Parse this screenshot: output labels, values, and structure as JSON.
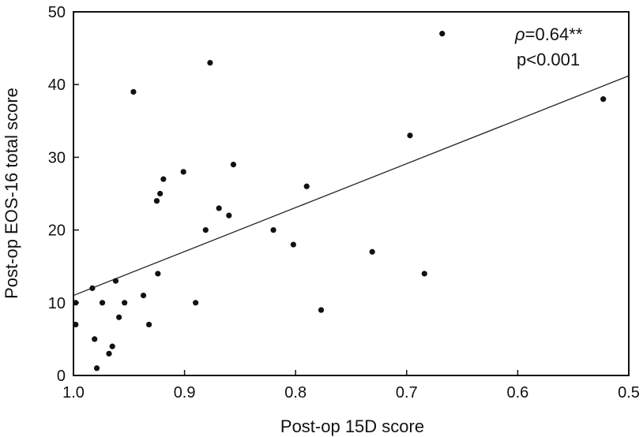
{
  "chart_data": {
    "type": "scatter",
    "title": "",
    "xlabel": "Post-op 15D score",
    "ylabel": "Post-op EOS-16 total score",
    "xlim": [
      1.0,
      0.5
    ],
    "ylim": [
      0,
      50
    ],
    "x_reversed": true,
    "grid": false,
    "legend": "none",
    "x_ticks": [
      1.0,
      0.9,
      0.8,
      0.7,
      0.6,
      0.5
    ],
    "x_tick_labels": [
      "1.0",
      "0.9",
      "0.8",
      "0.7",
      "0.6",
      "0.5"
    ],
    "y_ticks": [
      0,
      10,
      20,
      30,
      40,
      50
    ],
    "y_tick_labels": [
      "0",
      "10",
      "20",
      "30",
      "40",
      "50"
    ],
    "points": [
      {
        "x": 0.998,
        "y": 10
      },
      {
        "x": 0.998,
        "y": 7
      },
      {
        "x": 0.983,
        "y": 12
      },
      {
        "x": 0.981,
        "y": 5
      },
      {
        "x": 0.979,
        "y": 1
      },
      {
        "x": 0.974,
        "y": 10
      },
      {
        "x": 0.968,
        "y": 3
      },
      {
        "x": 0.965,
        "y": 4
      },
      {
        "x": 0.962,
        "y": 13
      },
      {
        "x": 0.959,
        "y": 8
      },
      {
        "x": 0.954,
        "y": 10
      },
      {
        "x": 0.946,
        "y": 39
      },
      {
        "x": 0.937,
        "y": 11
      },
      {
        "x": 0.932,
        "y": 7
      },
      {
        "x": 0.925,
        "y": 24
      },
      {
        "x": 0.924,
        "y": 14
      },
      {
        "x": 0.922,
        "y": 25
      },
      {
        "x": 0.919,
        "y": 27
      },
      {
        "x": 0.901,
        "y": 28
      },
      {
        "x": 0.89,
        "y": 10
      },
      {
        "x": 0.881,
        "y": 20
      },
      {
        "x": 0.877,
        "y": 43
      },
      {
        "x": 0.869,
        "y": 23
      },
      {
        "x": 0.86,
        "y": 22
      },
      {
        "x": 0.856,
        "y": 29
      },
      {
        "x": 0.82,
        "y": 20
      },
      {
        "x": 0.802,
        "y": 18
      },
      {
        "x": 0.79,
        "y": 26
      },
      {
        "x": 0.777,
        "y": 9
      },
      {
        "x": 0.731,
        "y": 17
      },
      {
        "x": 0.697,
        "y": 33
      },
      {
        "x": 0.684,
        "y": 14
      },
      {
        "x": 0.668,
        "y": 47
      },
      {
        "x": 0.523,
        "y": 38
      }
    ],
    "trendline": {
      "x": [
        1.0,
        0.5
      ],
      "y": [
        11,
        41.2
      ]
    },
    "annotations": {
      "rho_symbol": "ρ",
      "rho_value": "=0.64**",
      "p_value": "p<0.001"
    }
  }
}
